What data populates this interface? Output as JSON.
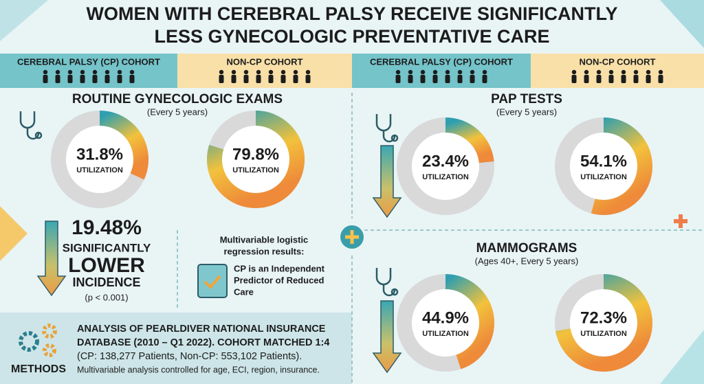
{
  "title": [
    "WOMEN WITH CEREBRAL PALSY RECEIVE SIGNIFICANTLY",
    "LESS GYNECOLOGIC PREVENTATIVE CARE"
  ],
  "cohort_headers": [
    "CEREBRAL PALSY (CP) COHORT",
    "NON-CP COHORT",
    "CEREBRAL PALSY (CP) COHORT",
    "NON-CP COHORT"
  ],
  "sections": [
    {
      "title": "ROUTINE GYNECOLOGIC EXAMS",
      "subtitle": "(Every 5 years)",
      "donuts": [
        {
          "value": 31.8,
          "label": "31.8%",
          "caption": "UTILIZATION"
        },
        {
          "value": 79.8,
          "label": "79.8%",
          "caption": "UTILIZATION"
        }
      ]
    },
    {
      "title": "PAP TESTS",
      "subtitle": "(Every 5 years)",
      "donuts": [
        {
          "value": 23.4,
          "label": "23.4%",
          "caption": "UTILIZATION"
        },
        {
          "value": 54.1,
          "label": "54.1%",
          "caption": "UTILIZATION"
        }
      ]
    },
    {
      "title": "MAMMOGRAMS",
      "subtitle": "(Ages 40+, Every 5 years)",
      "donuts": [
        {
          "value": 44.9,
          "label": "44.9%",
          "caption": "UTILIZATION"
        },
        {
          "value": 72.3,
          "label": "72.3%",
          "caption": "UTILIZATION"
        }
      ]
    }
  ],
  "difference": {
    "label": "19.48%",
    "lines": [
      "SIGNIFICANTLY",
      "LOWER",
      "INCIDENCE",
      "(p < 0.001)"
    ]
  },
  "regression": {
    "heading": [
      "Multivariable logistic",
      "regression results:"
    ],
    "text": [
      "CP is an Independent",
      "Predictor of Reduced",
      "Care"
    ]
  },
  "methods": {
    "label": "METHODS",
    "lines": [
      "ANALYSIS OF PEARLDIVER NATIONAL INSURANCE",
      "DATABASE (2010 – Q1 2022). COHORT MATCHED 1:4",
      "(CP: 138,277 Patients, Non-CP: 553,102 Patients).",
      "Multivariable analysis controlled for age, ECI, region, insurance."
    ]
  }
}
